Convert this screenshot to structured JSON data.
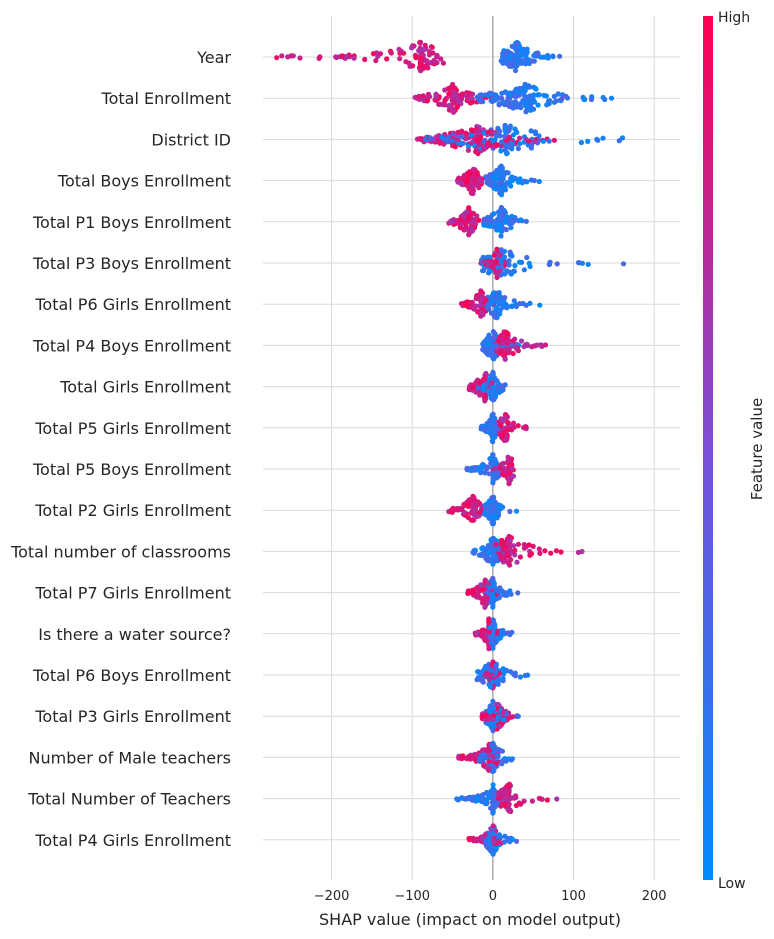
{
  "chart_data": {
    "type": "scatter",
    "subtype": "shap-beeswarm-summary",
    "xlabel": "SHAP value (impact on model output)",
    "xlim": [
      -285,
      232
    ],
    "xticks": [
      -200,
      -100,
      0,
      100,
      200
    ],
    "xtick_labels": [
      "−200",
      "−100",
      "0",
      "100",
      "200"
    ],
    "grid": true,
    "colorbar": {
      "label": "Feature value",
      "high_label": "High",
      "low_label": "Low",
      "high_color": "#ff0052",
      "mid_color": "#7b4fd8",
      "low_color": "#008bfb"
    },
    "features": [
      {
        "name": "Year",
        "low_range": [
          10,
          110
        ],
        "low_peak": 30,
        "high_range": [
          -270,
          -55
        ],
        "high_peak": -90
      },
      {
        "name": "Total Enrollment",
        "low_range": [
          -20,
          178
        ],
        "low_peak": 40,
        "high_range": [
          -100,
          10
        ],
        "high_peak": -50
      },
      {
        "name": "District ID",
        "low_range": [
          -95,
          208
        ],
        "low_peak": 15,
        "high_range": [
          -95,
          100
        ],
        "high_peak": -20
      },
      {
        "name": "Total Boys Enrollment",
        "low_range": [
          -10,
          65
        ],
        "low_peak": 10,
        "high_range": [
          -45,
          5
        ],
        "high_peak": -25
      },
      {
        "name": "Total P1 Boys Enrollment",
        "low_range": [
          -15,
          58
        ],
        "low_peak": 10,
        "high_range": [
          -55,
          0
        ],
        "high_peak": -30
      },
      {
        "name": "Total P3 Boys Enrollment",
        "low_range": [
          -15,
          202
        ],
        "low_peak": 10,
        "high_range": [
          -15,
          20
        ],
        "high_peak": 5
      },
      {
        "name": "Total P6 Girls Enrollment",
        "low_range": [
          -10,
          68
        ],
        "low_peak": 5,
        "high_range": [
          -40,
          5
        ],
        "high_peak": -15
      },
      {
        "name": "Total P4 Boys Enrollment",
        "low_range": [
          -15,
          50
        ],
        "low_peak": 0,
        "high_range": [
          0,
          88
        ],
        "high_peak": 15
      },
      {
        "name": "Total Girls Enrollment",
        "low_range": [
          -20,
          25
        ],
        "low_peak": 0,
        "high_range": [
          -30,
          30
        ],
        "high_peak": -10
      },
      {
        "name": "Total P5 Girls Enrollment",
        "low_range": [
          -15,
          15
        ],
        "low_peak": 0,
        "high_range": [
          0,
          52
        ],
        "high_peak": 15
      },
      {
        "name": "Total P5 Boys Enrollment",
        "low_range": [
          -38,
          15
        ],
        "low_peak": 0,
        "high_range": [
          0,
          40
        ],
        "high_peak": 20
      },
      {
        "name": "Total P2 Girls Enrollment",
        "low_range": [
          -15,
          30
        ],
        "low_peak": 0,
        "high_range": [
          -55,
          10
        ],
        "high_peak": -25
      },
      {
        "name": "Total number of classrooms",
        "low_range": [
          -25,
          40
        ],
        "low_peak": 0,
        "high_range": [
          0,
          162
        ],
        "high_peak": 20
      },
      {
        "name": "Total P7 Girls Enrollment",
        "low_range": [
          -10,
          42
        ],
        "low_peak": 0,
        "high_range": [
          -35,
          10
        ],
        "high_peak": -10
      },
      {
        "name": "Is there a water source?",
        "low_range": [
          -5,
          38
        ],
        "low_peak": 0,
        "high_range": [
          -22,
          8
        ],
        "high_peak": -5
      },
      {
        "name": "Total P6 Boys Enrollment",
        "low_range": [
          -20,
          65
        ],
        "low_peak": 0,
        "high_range": [
          -10,
          10
        ],
        "high_peak": 0
      },
      {
        "name": "Total P3 Girls Enrollment",
        "low_range": [
          -10,
          42
        ],
        "low_peak": 0,
        "high_range": [
          -15,
          35
        ],
        "high_peak": 5
      },
      {
        "name": "Number of Male teachers",
        "low_range": [
          -20,
          48
        ],
        "low_peak": 0,
        "high_range": [
          -45,
          15
        ],
        "high_peak": -5
      },
      {
        "name": "Total Number of Teachers",
        "low_range": [
          -45,
          15
        ],
        "low_peak": 0,
        "high_range": [
          0,
          83
        ],
        "high_peak": 20
      },
      {
        "name": "Total P4 Girls Enrollment",
        "low_range": [
          -10,
          42
        ],
        "low_peak": 0,
        "high_range": [
          -30,
          15
        ],
        "high_peak": 0
      }
    ]
  }
}
